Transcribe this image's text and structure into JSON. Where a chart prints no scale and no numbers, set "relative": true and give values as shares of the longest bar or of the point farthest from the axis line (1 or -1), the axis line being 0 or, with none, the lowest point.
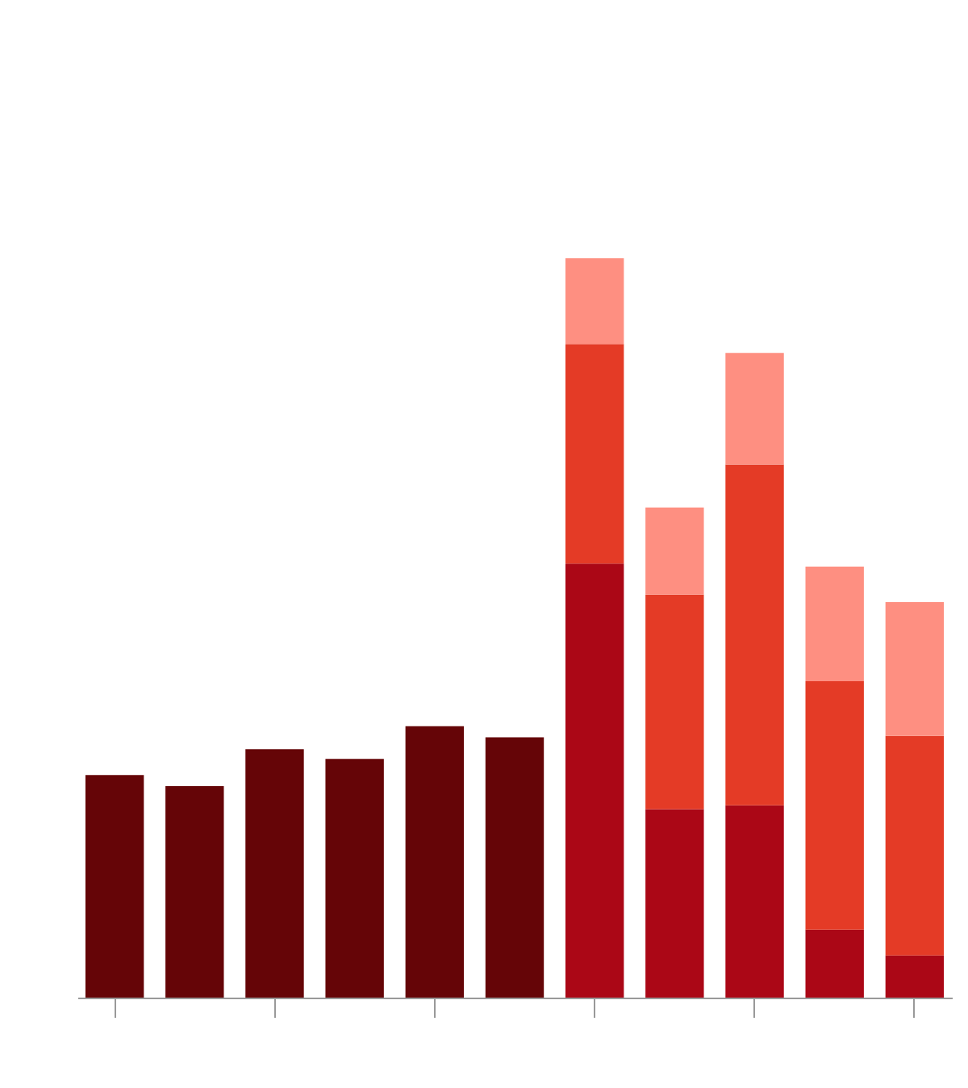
{
  "chart_data": {
    "type": "bar",
    "stacked": true,
    "relative": true,
    "categories": [
      null,
      null,
      null,
      null,
      null,
      null,
      null,
      null,
      null,
      null,
      null
    ],
    "series": [
      {
        "colors": [
          "#650507",
          "#650507",
          "#650507",
          "#650507",
          "#650507",
          "#650507",
          "#ab0716",
          "#ab0716",
          "#ab0716",
          "#ab0716",
          "#ab0716"
        ],
        "values": [
          0.301,
          0.286,
          0.336,
          0.323,
          0.367,
          0.352,
          0.587,
          0.255,
          0.26,
          0.092,
          0.057
        ]
      },
      {
        "color": "#e43b26",
        "values": [
          null,
          null,
          null,
          null,
          null,
          null,
          0.297,
          0.29,
          0.461,
          0.336,
          0.297
        ]
      },
      {
        "color": "#fe8f81",
        "values": [
          null,
          null,
          null,
          null,
          null,
          null,
          0.116,
          0.118,
          0.151,
          0.155,
          0.181
        ]
      }
    ]
  }
}
